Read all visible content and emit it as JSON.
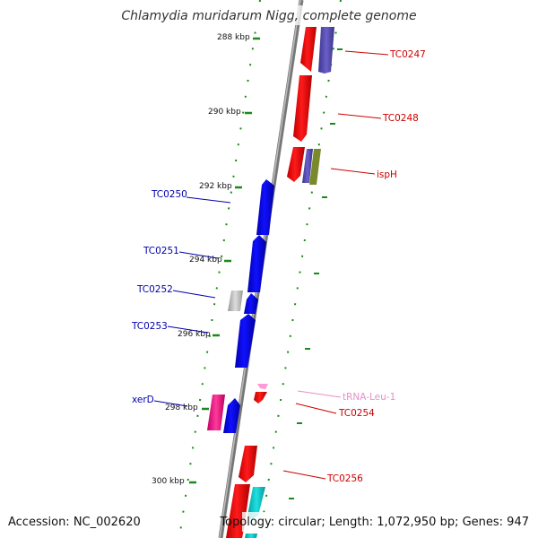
{
  "title": "Chlamydia muridarum Nigg, complete genome",
  "footer": {
    "accession": "Accession: NC_002620",
    "summary": "Topology: circular; Length: 1,072,950 bp; Genes: 947"
  },
  "scale_labels": [
    "288 kbp",
    "290 kbp",
    "292 kbp",
    "294 kbp",
    "296 kbp",
    "298 kbp",
    "300 kbp"
  ],
  "gene_labels": {
    "forward": [
      "TC0247",
      "TC0248",
      "ispH",
      "tRNA-Leu-1",
      "TC0254",
      "TC0256"
    ],
    "reverse": [
      "TC0250",
      "TC0251",
      "TC0252",
      "TC0253",
      "xerD"
    ]
  },
  "colors": {
    "forward_gene": "#ff0000",
    "reverse_gene": "#0000ee",
    "forward_label": "#cc0000",
    "reverse_label": "#0000aa",
    "trna_label": "#e58fc8",
    "backbone": "#888888",
    "tick": "#1a8a1a",
    "pseudo_grey": "#bbbbbb",
    "magenta": "#ff1493",
    "purple": "#5a50b5",
    "olive": "#7a8a2a",
    "cyan": "#00cccc"
  }
}
